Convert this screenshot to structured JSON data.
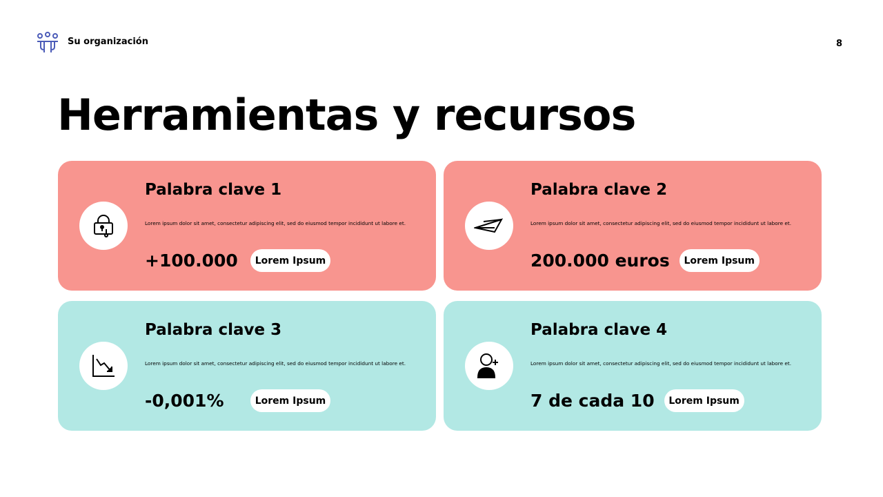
{
  "header": {
    "org_name": "Su organización",
    "page_number": "8",
    "logo_icon": "people-group-icon",
    "logo_color": "#4B5BB8"
  },
  "title": "Herramientas y recursos",
  "colors": {
    "coral": "#F8958F",
    "mint": "#B2E8E4"
  },
  "cards": [
    {
      "title": "Palabra clave 1",
      "text": "Lorem ipsum dolor sit amet, consectetur adipiscing elit, sed do eiusmod tempor incididunt ut labore et.",
      "value": "+100.000",
      "button": "Lorem Ipsum",
      "icon": "padlock-key-icon"
    },
    {
      "title": "Palabra clave 2",
      "text": "Lorem ipsum dolor sit amet, consectetur adipiscing elit, sed do eiusmod tempor incididunt ut labore et.",
      "value": "200.000 euros",
      "button": "Lorem Ipsum",
      "icon": "paper-plane-icon"
    },
    {
      "title": "Palabra clave 3",
      "text": "Lorem ipsum dolor sit amet, consectetur adipiscing elit, sed do eiusmod tempor incididunt ut labore et.",
      "value": "-0,001%",
      "button": "Lorem Ipsum",
      "icon": "chart-down-icon"
    },
    {
      "title": "Palabra clave 4",
      "text": "Lorem ipsum dolor sit amet, consectetur adipiscing elit, sed do eiusmod tempor incididunt ut labore et.",
      "value": "7 de cada 10",
      "button": "Lorem Ipsum",
      "icon": "add-user-icon"
    }
  ]
}
